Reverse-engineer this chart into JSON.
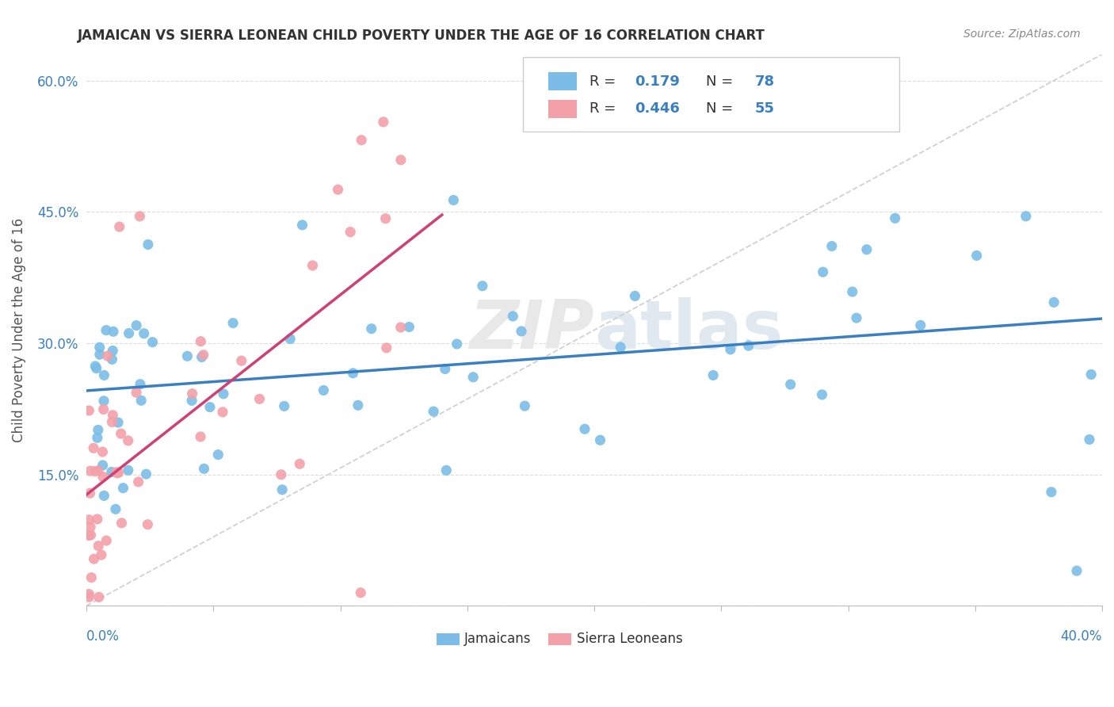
{
  "title": "JAMAICAN VS SIERRA LEONEAN CHILD POVERTY UNDER THE AGE OF 16 CORRELATION CHART",
  "source": "Source: ZipAtlas.com",
  "ylabel": "Child Poverty Under the Age of 16",
  "xlim": [
    0.0,
    0.4
  ],
  "ylim": [
    0.0,
    0.63
  ],
  "watermark_zip": "ZIP",
  "watermark_atlas": "atlas",
  "r_jam": "0.179",
  "n_jam": "78",
  "r_sl": "0.446",
  "n_sl": "55",
  "jamaicans_color": "#7bbde8",
  "sierraloneans_color": "#f4a0a8",
  "trendline_jam_color": "#3a7fc1",
  "trendline_sl_color": "#d04070",
  "seed": 42
}
